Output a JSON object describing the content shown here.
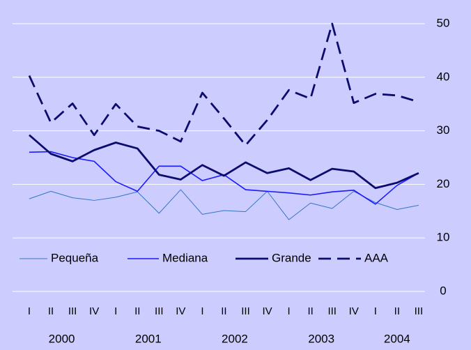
{
  "chart_data": {
    "type": "line",
    "categories": [
      "I",
      "II",
      "III",
      "IV",
      "I",
      "II",
      "III",
      "IV",
      "I",
      "II",
      "III",
      "IV",
      "I",
      "II",
      "III",
      "IV",
      "I",
      "II",
      "III"
    ],
    "years": [
      "2000",
      "2001",
      "2002",
      "2003",
      "2004"
    ],
    "ylim": [
      0,
      50
    ],
    "yticks": [
      0,
      10,
      20,
      30,
      40,
      50
    ],
    "grid": true,
    "y_axis_side": "right",
    "legend": "inside",
    "series": [
      {
        "name": "Pequeña",
        "color": "#3377c4",
        "values": [
          17.3,
          18.7,
          17.5,
          17.0,
          17.6,
          18.6,
          14.6,
          19.0,
          14.4,
          15.1,
          14.9,
          18.7,
          13.4,
          16.5,
          15.5,
          18.7,
          16.6,
          15.3,
          16.1
        ]
      },
      {
        "name": "Mediana",
        "color": "#1a1aff",
        "values": [
          26.0,
          26.1,
          25.0,
          24.3,
          20.5,
          18.7,
          23.4,
          23.4,
          20.7,
          21.8,
          19.0,
          18.7,
          18.4,
          18.0,
          18.6,
          18.9,
          16.3,
          19.8,
          22.1
        ]
      },
      {
        "name": "Grande",
        "color": "#0c0c6e",
        "values": [
          29.2,
          25.7,
          24.3,
          26.4,
          27.8,
          26.7,
          21.8,
          20.9,
          23.6,
          21.6,
          24.1,
          22.1,
          23.0,
          20.8,
          22.9,
          22.4,
          19.3,
          20.3,
          22.1
        ]
      },
      {
        "name": "AAA",
        "color": "#0c0c6e",
        "dashed": true,
        "values": [
          40.3,
          31.5,
          35.1,
          29.2,
          35.0,
          30.8,
          30.0,
          28.0,
          37.1,
          32.3,
          27.3,
          32.0,
          37.6,
          36.0,
          50.0,
          35.2,
          36.9,
          36.6,
          35.4
        ]
      }
    ]
  }
}
